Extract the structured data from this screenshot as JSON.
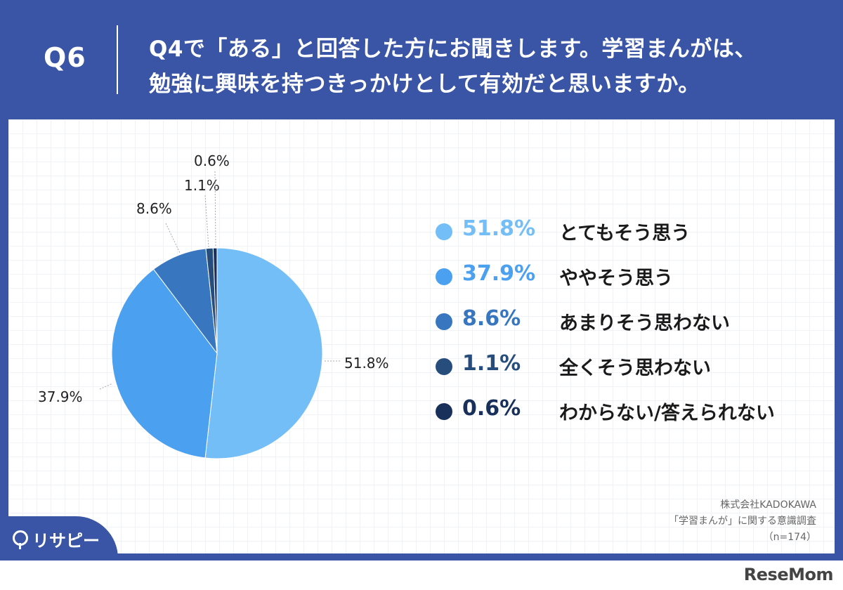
{
  "header": {
    "question_number": "Q6",
    "title_line1": "Q4で「ある」と回答した方にお聞きします。学習まんがは、",
    "title_line2": "勉強に興味を持つきっかけとして有効だと思いますか。"
  },
  "chart_data": {
    "type": "pie",
    "slices": [
      {
        "label": "とてもそう思う",
        "value": 51.8,
        "display": "51.8%",
        "color": "#74bef8"
      },
      {
        "label": "ややそう思う",
        "value": 37.9,
        "display": "37.9%",
        "color": "#4ba0f0"
      },
      {
        "label": "あまりそう思わない",
        "value": 8.6,
        "display": "8.6%",
        "color": "#3877bf"
      },
      {
        "label": "全くそう思わない",
        "value": 1.1,
        "display": "1.1%",
        "color": "#274d7d"
      },
      {
        "label": "わからない/答えられない",
        "value": 0.6,
        "display": "0.6%",
        "color": "#18305a"
      }
    ],
    "legend_placement": "right"
  },
  "source": {
    "line1": "株式会社KADOKAWA",
    "line2": "「学習まんが」に関する意識調査",
    "line3": "（n=174）"
  },
  "brand": {
    "name": "リサピー"
  },
  "watermark": {
    "text": "ReseMom"
  }
}
